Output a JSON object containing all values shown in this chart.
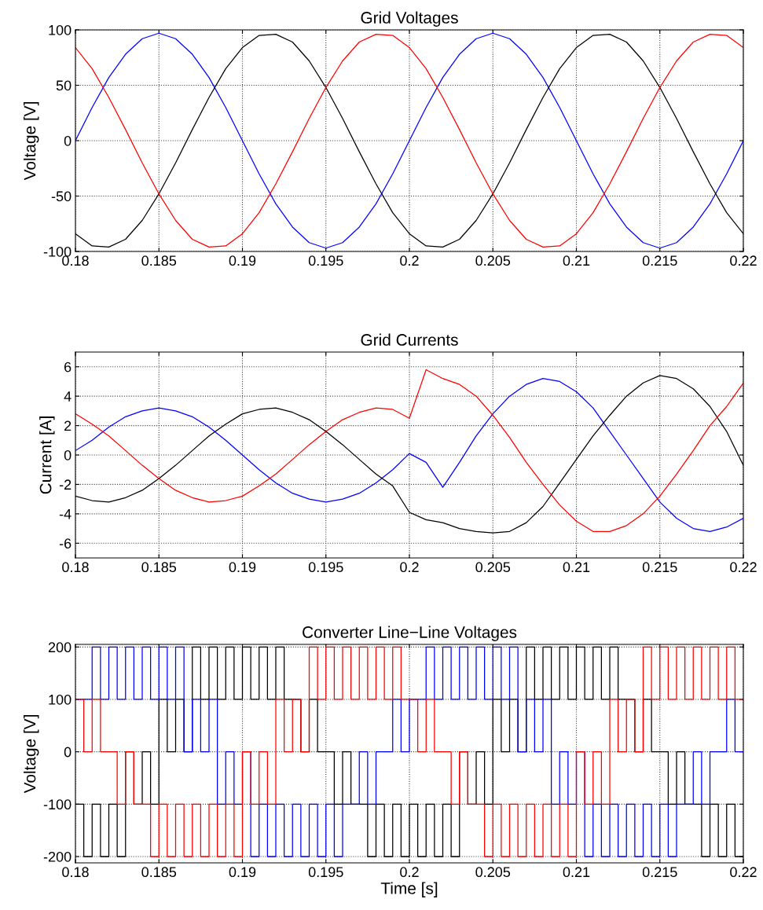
{
  "chart_data": [
    {
      "type": "line",
      "title": "Grid Voltages",
      "ylabel": "Voltage [V]",
      "xlim": [
        0.18,
        0.22
      ],
      "xticks": [
        0.18,
        0.185,
        0.19,
        0.195,
        0.2,
        0.205,
        0.21,
        0.215,
        0.22
      ],
      "ylim": [
        -100,
        100
      ],
      "yticks": [
        -100,
        -50,
        0,
        50,
        100
      ],
      "grid": true,
      "x": [
        0.18,
        0.181,
        0.182,
        0.183,
        0.184,
        0.185,
        0.186,
        0.187,
        0.188,
        0.189,
        0.19,
        0.191,
        0.192,
        0.193,
        0.194,
        0.195,
        0.196,
        0.197,
        0.198,
        0.199,
        0.2,
        0.201,
        0.202,
        0.203,
        0.204,
        0.205,
        0.206,
        0.207,
        0.208,
        0.209,
        0.21,
        0.211,
        0.212,
        0.213,
        0.214,
        0.215,
        0.216,
        0.217,
        0.218,
        0.219,
        0.22
      ],
      "series": [
        {
          "color": "#0000ff",
          "values": [
            0,
            30,
            57,
            78,
            92,
            97,
            92,
            78,
            57,
            30,
            0,
            -30,
            -57,
            -78,
            -92,
            -97,
            -92,
            -78,
            -57,
            -30,
            0,
            30,
            57,
            78,
            92,
            97,
            92,
            78,
            57,
            30,
            0,
            -30,
            -57,
            -78,
            -92,
            -97,
            -92,
            -78,
            -57,
            -30,
            0
          ]
        },
        {
          "color": "#000000",
          "values": [
            -84,
            -95,
            -96,
            -89,
            -72,
            -48,
            -20,
            10,
            39,
            65,
            84,
            95,
            96,
            89,
            72,
            48,
            20,
            -10,
            -39,
            -65,
            -84,
            -95,
            -96,
            -89,
            -72,
            -48,
            -20,
            10,
            39,
            65,
            84,
            95,
            96,
            89,
            72,
            48,
            20,
            -10,
            -39,
            -65,
            -84
          ]
        },
        {
          "color": "#ff0000",
          "values": [
            84,
            65,
            39,
            10,
            -20,
            -48,
            -72,
            -89,
            -96,
            -95,
            -84,
            -65,
            -39,
            -10,
            20,
            48,
            72,
            89,
            96,
            95,
            84,
            65,
            39,
            10,
            -20,
            -48,
            -72,
            -89,
            -96,
            -95,
            -84,
            -65,
            -39,
            -10,
            20,
            48,
            72,
            89,
            96,
            95,
            84
          ]
        }
      ]
    },
    {
      "type": "line",
      "title": "Grid Currents",
      "ylabel": "Current [A]",
      "xlim": [
        0.18,
        0.22
      ],
      "xticks": [
        0.18,
        0.185,
        0.19,
        0.195,
        0.2,
        0.205,
        0.21,
        0.215,
        0.22
      ],
      "ylim": [
        -7,
        7
      ],
      "yticks": [
        -6,
        -4,
        -2,
        0,
        2,
        4,
        6
      ],
      "grid": true,
      "x": [
        0.18,
        0.181,
        0.182,
        0.183,
        0.184,
        0.185,
        0.186,
        0.187,
        0.188,
        0.189,
        0.19,
        0.191,
        0.192,
        0.193,
        0.194,
        0.195,
        0.196,
        0.197,
        0.198,
        0.199,
        0.2,
        0.201,
        0.202,
        0.203,
        0.204,
        0.205,
        0.206,
        0.207,
        0.208,
        0.209,
        0.21,
        0.211,
        0.212,
        0.213,
        0.214,
        0.215,
        0.216,
        0.217,
        0.218,
        0.219,
        0.22
      ],
      "series": [
        {
          "color": "#0000ff",
          "values": [
            0.3,
            1.0,
            1.9,
            2.6,
            3.0,
            3.2,
            3.0,
            2.6,
            1.9,
            1.0,
            0,
            -1.0,
            -1.9,
            -2.6,
            -3.0,
            -3.2,
            -3.0,
            -2.6,
            -1.9,
            -1.0,
            0.1,
            -0.5,
            -2.2,
            -0.5,
            1.3,
            2.8,
            4.0,
            4.8,
            5.2,
            5.0,
            4.3,
            3.2,
            1.6,
            0,
            -1.6,
            -3.2,
            -4.3,
            -5.0,
            -5.2,
            -4.9,
            -4.3
          ]
        },
        {
          "color": "#000000",
          "values": [
            -2.8,
            -3.1,
            -3.2,
            -2.9,
            -2.4,
            -1.6,
            -0.7,
            0.3,
            1.3,
            2.1,
            2.8,
            3.1,
            3.2,
            2.9,
            2.4,
            1.6,
            0.7,
            -0.3,
            -1.3,
            -2.1,
            -3.9,
            -4.4,
            -4.6,
            -5.0,
            -5.2,
            -5.3,
            -5.2,
            -4.6,
            -3.5,
            -1.9,
            -0.3,
            1.3,
            2.7,
            4.0,
            4.9,
            5.4,
            5.2,
            4.5,
            3.3,
            1.6,
            -0.7
          ]
        },
        {
          "color": "#ff0000",
          "values": [
            2.8,
            2.1,
            1.3,
            0.3,
            -0.7,
            -1.6,
            -2.4,
            -2.9,
            -3.2,
            -3.1,
            -2.8,
            -2.1,
            -1.3,
            -0.3,
            0.7,
            1.6,
            2.4,
            2.9,
            3.2,
            3.1,
            2.5,
            5.8,
            5.2,
            4.8,
            4.0,
            2.7,
            1.2,
            -0.5,
            -2.0,
            -3.4,
            -4.5,
            -5.2,
            -5.2,
            -4.8,
            -4.0,
            -2.8,
            -1.3,
            0.3,
            2.0,
            3.3,
            4.9
          ]
        }
      ]
    },
    {
      "type": "step",
      "title": "Converter Line−Line Voltages",
      "xlabel": "Time [s]",
      "ylabel": "Voltage [V]",
      "xlim": [
        0.18,
        0.22
      ],
      "xticks": [
        0.18,
        0.185,
        0.19,
        0.195,
        0.2,
        0.205,
        0.21,
        0.215,
        0.22
      ],
      "ylim": [
        -212,
        205
      ],
      "yticks": [
        -200,
        -100,
        0,
        100,
        200
      ],
      "grid": true,
      "x": [
        0.18,
        0.1805,
        0.181,
        0.1815,
        0.182,
        0.1825,
        0.183,
        0.1835,
        0.184,
        0.1845,
        0.185,
        0.1855,
        0.186,
        0.1865,
        0.187,
        0.1875,
        0.188,
        0.1885,
        0.189,
        0.1895,
        0.19,
        0.1905,
        0.191,
        0.1915,
        0.192,
        0.1925,
        0.193,
        0.1935,
        0.194,
        0.1945,
        0.195,
        0.1955,
        0.196,
        0.1965,
        0.197,
        0.1975,
        0.198,
        0.1985,
        0.199,
        0.1995,
        0.2,
        0.2005,
        0.201,
        0.2015,
        0.202,
        0.2025,
        0.203,
        0.2035,
        0.204,
        0.2045,
        0.205,
        0.2055,
        0.206,
        0.2065,
        0.207,
        0.2075,
        0.208,
        0.2085,
        0.209,
        0.2095,
        0.21,
        0.2105,
        0.211,
        0.2115,
        0.212,
        0.2125,
        0.213,
        0.2135,
        0.214,
        0.2145,
        0.215,
        0.2155,
        0.216,
        0.2165,
        0.217,
        0.2175,
        0.218,
        0.2185,
        0.219,
        0.2195,
        0.22
      ],
      "series": [
        {
          "color": "#000000",
          "values": [
            -100,
            -200,
            -100,
            -200,
            -100,
            -200,
            0,
            -100,
            0,
            -100,
            100,
            0,
            100,
            0,
            200,
            100,
            200,
            100,
            200,
            100,
            200,
            100,
            200,
            100,
            200,
            100,
            100,
            0,
            100,
            0,
            0,
            -100,
            0,
            -100,
            -100,
            -200,
            -100,
            -200,
            -100,
            -200,
            -100,
            -200,
            -100,
            -200,
            -100,
            -200,
            0,
            -100,
            0,
            -100,
            100,
            0,
            100,
            0,
            200,
            100,
            200,
            100,
            200,
            100,
            200,
            100,
            200,
            100,
            200,
            100,
            100,
            0,
            100,
            0,
            0,
            -100,
            0,
            -100,
            -100,
            -200,
            -100,
            -200,
            -100,
            -200,
            -200
          ]
        },
        {
          "color": "#0000ff",
          "values": [
            100,
            100,
            200,
            100,
            200,
            100,
            200,
            100,
            200,
            100,
            200,
            100,
            200,
            0,
            100,
            0,
            100,
            -100,
            0,
            -100,
            0,
            -200,
            -100,
            -200,
            -100,
            -200,
            -100,
            -200,
            -100,
            -200,
            -100,
            -200,
            -100,
            -100,
            0,
            -100,
            0,
            0,
            100,
            0,
            100,
            100,
            200,
            100,
            200,
            100,
            200,
            100,
            200,
            100,
            200,
            100,
            200,
            0,
            100,
            0,
            100,
            -100,
            0,
            -100,
            0,
            -200,
            -100,
            -200,
            -100,
            -200,
            -100,
            -200,
            -100,
            -200,
            -100,
            -200,
            -100,
            -100,
            0,
            -100,
            0,
            0,
            100,
            0,
            0
          ]
        },
        {
          "color": "#ff0000",
          "values": [
            100,
            0,
            100,
            0,
            0,
            -100,
            0,
            -100,
            -100,
            -200,
            -100,
            -200,
            -100,
            -200,
            -100,
            -200,
            -100,
            -200,
            -100,
            -200,
            0,
            -100,
            0,
            -100,
            100,
            0,
            100,
            0,
            200,
            100,
            200,
            100,
            200,
            100,
            200,
            100,
            200,
            100,
            200,
            100,
            100,
            0,
            100,
            0,
            0,
            -100,
            0,
            -100,
            -100,
            -200,
            -100,
            -200,
            -100,
            -200,
            -100,
            -200,
            -100,
            -200,
            -100,
            -200,
            0,
            -100,
            0,
            -100,
            100,
            0,
            100,
            0,
            200,
            100,
            200,
            100,
            200,
            100,
            200,
            100,
            200,
            100,
            200,
            100,
            100
          ]
        }
      ]
    }
  ]
}
